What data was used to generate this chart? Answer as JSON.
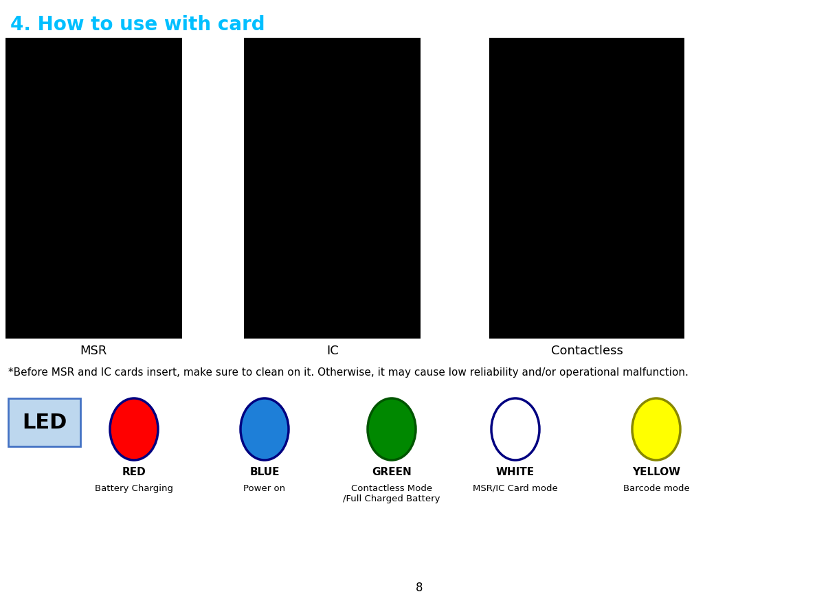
{
  "title": "4. How to use with card",
  "title_color": "#00BFFF",
  "title_fontsize": 20,
  "bg_color": "#ffffff",
  "image_labels": [
    "MSR",
    "IC",
    "Contactless"
  ],
  "image_label_fontsize": 13,
  "note_text": "*Before MSR and IC cards insert, make sure to clean on it. Otherwise, it may cause low reliability and/or operational malfunction.",
  "note_fontsize": 11,
  "led_text": "LED",
  "led_fontsize": 22,
  "led_box_facecolor": "#BDD7EE",
  "led_box_edgecolor": "#4472C4",
  "circles": [
    {
      "color": "#FF0000",
      "border": "#000080",
      "label1": "RED",
      "label2": "Battery Charging"
    },
    {
      "color": "#1E7FD8",
      "border": "#000080",
      "label1": "BLUE",
      "label2": "Power on"
    },
    {
      "color": "#008800",
      "border": "#005500",
      "label1": "GREEN",
      "label2": "Contactless Mode\n/Full Charged Battery"
    },
    {
      "color": "#FFFFFF",
      "border": "#000080",
      "label1": "WHITE",
      "label2": "MSR/IC Card mode"
    },
    {
      "color": "#FFFF00",
      "border": "#888800",
      "label1": "YELLOW",
      "label2": "Barcode mode"
    }
  ],
  "page_number": "8"
}
